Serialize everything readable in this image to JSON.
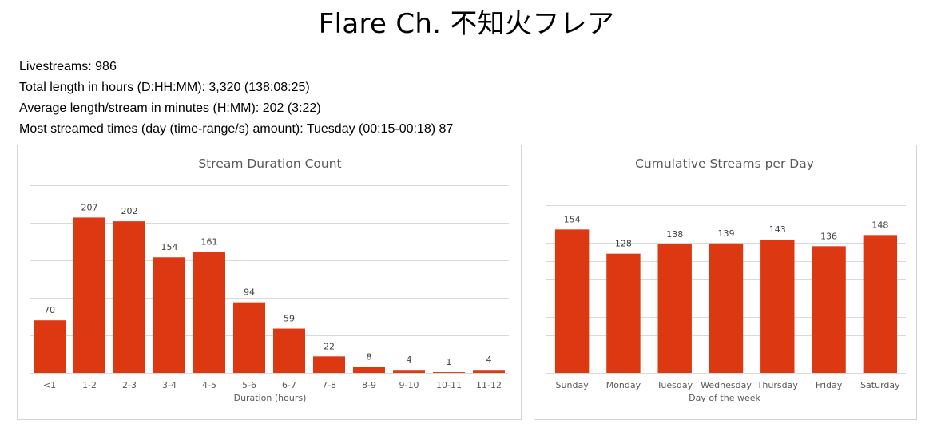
{
  "page": {
    "title": "Flare Ch. 不知火フレア",
    "stats": [
      "Livestreams: 986",
      "Total length in hours (D:HH:MM): 3,320 (138:08:25)",
      "Average length/stream in minutes (H:MM): 202 (3:22)",
      "Most streamed times (day (time-range/s) amount): Tuesday (00:15-00:18) 87"
    ]
  },
  "colors": {
    "bar": "#dc3912",
    "grid": "#d9d9d9",
    "axis": "#d9d9d9"
  },
  "chart_data": [
    {
      "type": "bar",
      "title": "Stream Duration Count",
      "xlabel": "Duration (hours)",
      "ylabel": "",
      "categories": [
        "<1",
        "1-2",
        "2-3",
        "3-4",
        "4-5",
        "5-6",
        "6-7",
        "7-8",
        "8-9",
        "9-10",
        "10-11",
        "11-12"
      ],
      "values": [
        70,
        207,
        202,
        154,
        161,
        94,
        59,
        22,
        8,
        4,
        1,
        4
      ],
      "ylim": [
        0,
        250
      ],
      "gridlines": [
        50,
        100,
        150,
        200,
        250
      ],
      "grid": true,
      "legend": "none"
    },
    {
      "type": "bar",
      "title": "Cumulative Streams per Day",
      "xlabel": "Day of the week",
      "ylabel": "",
      "categories": [
        "Sunday",
        "Monday",
        "Tuesday",
        "Wednesday",
        "Thursday",
        "Friday",
        "Saturday"
      ],
      "values": [
        154,
        128,
        138,
        139,
        143,
        136,
        148
      ],
      "ylim": [
        0,
        180
      ],
      "gridlines": [
        20,
        40,
        60,
        80,
        100,
        120,
        140,
        160,
        180
      ],
      "grid": true,
      "legend": "none"
    }
  ]
}
